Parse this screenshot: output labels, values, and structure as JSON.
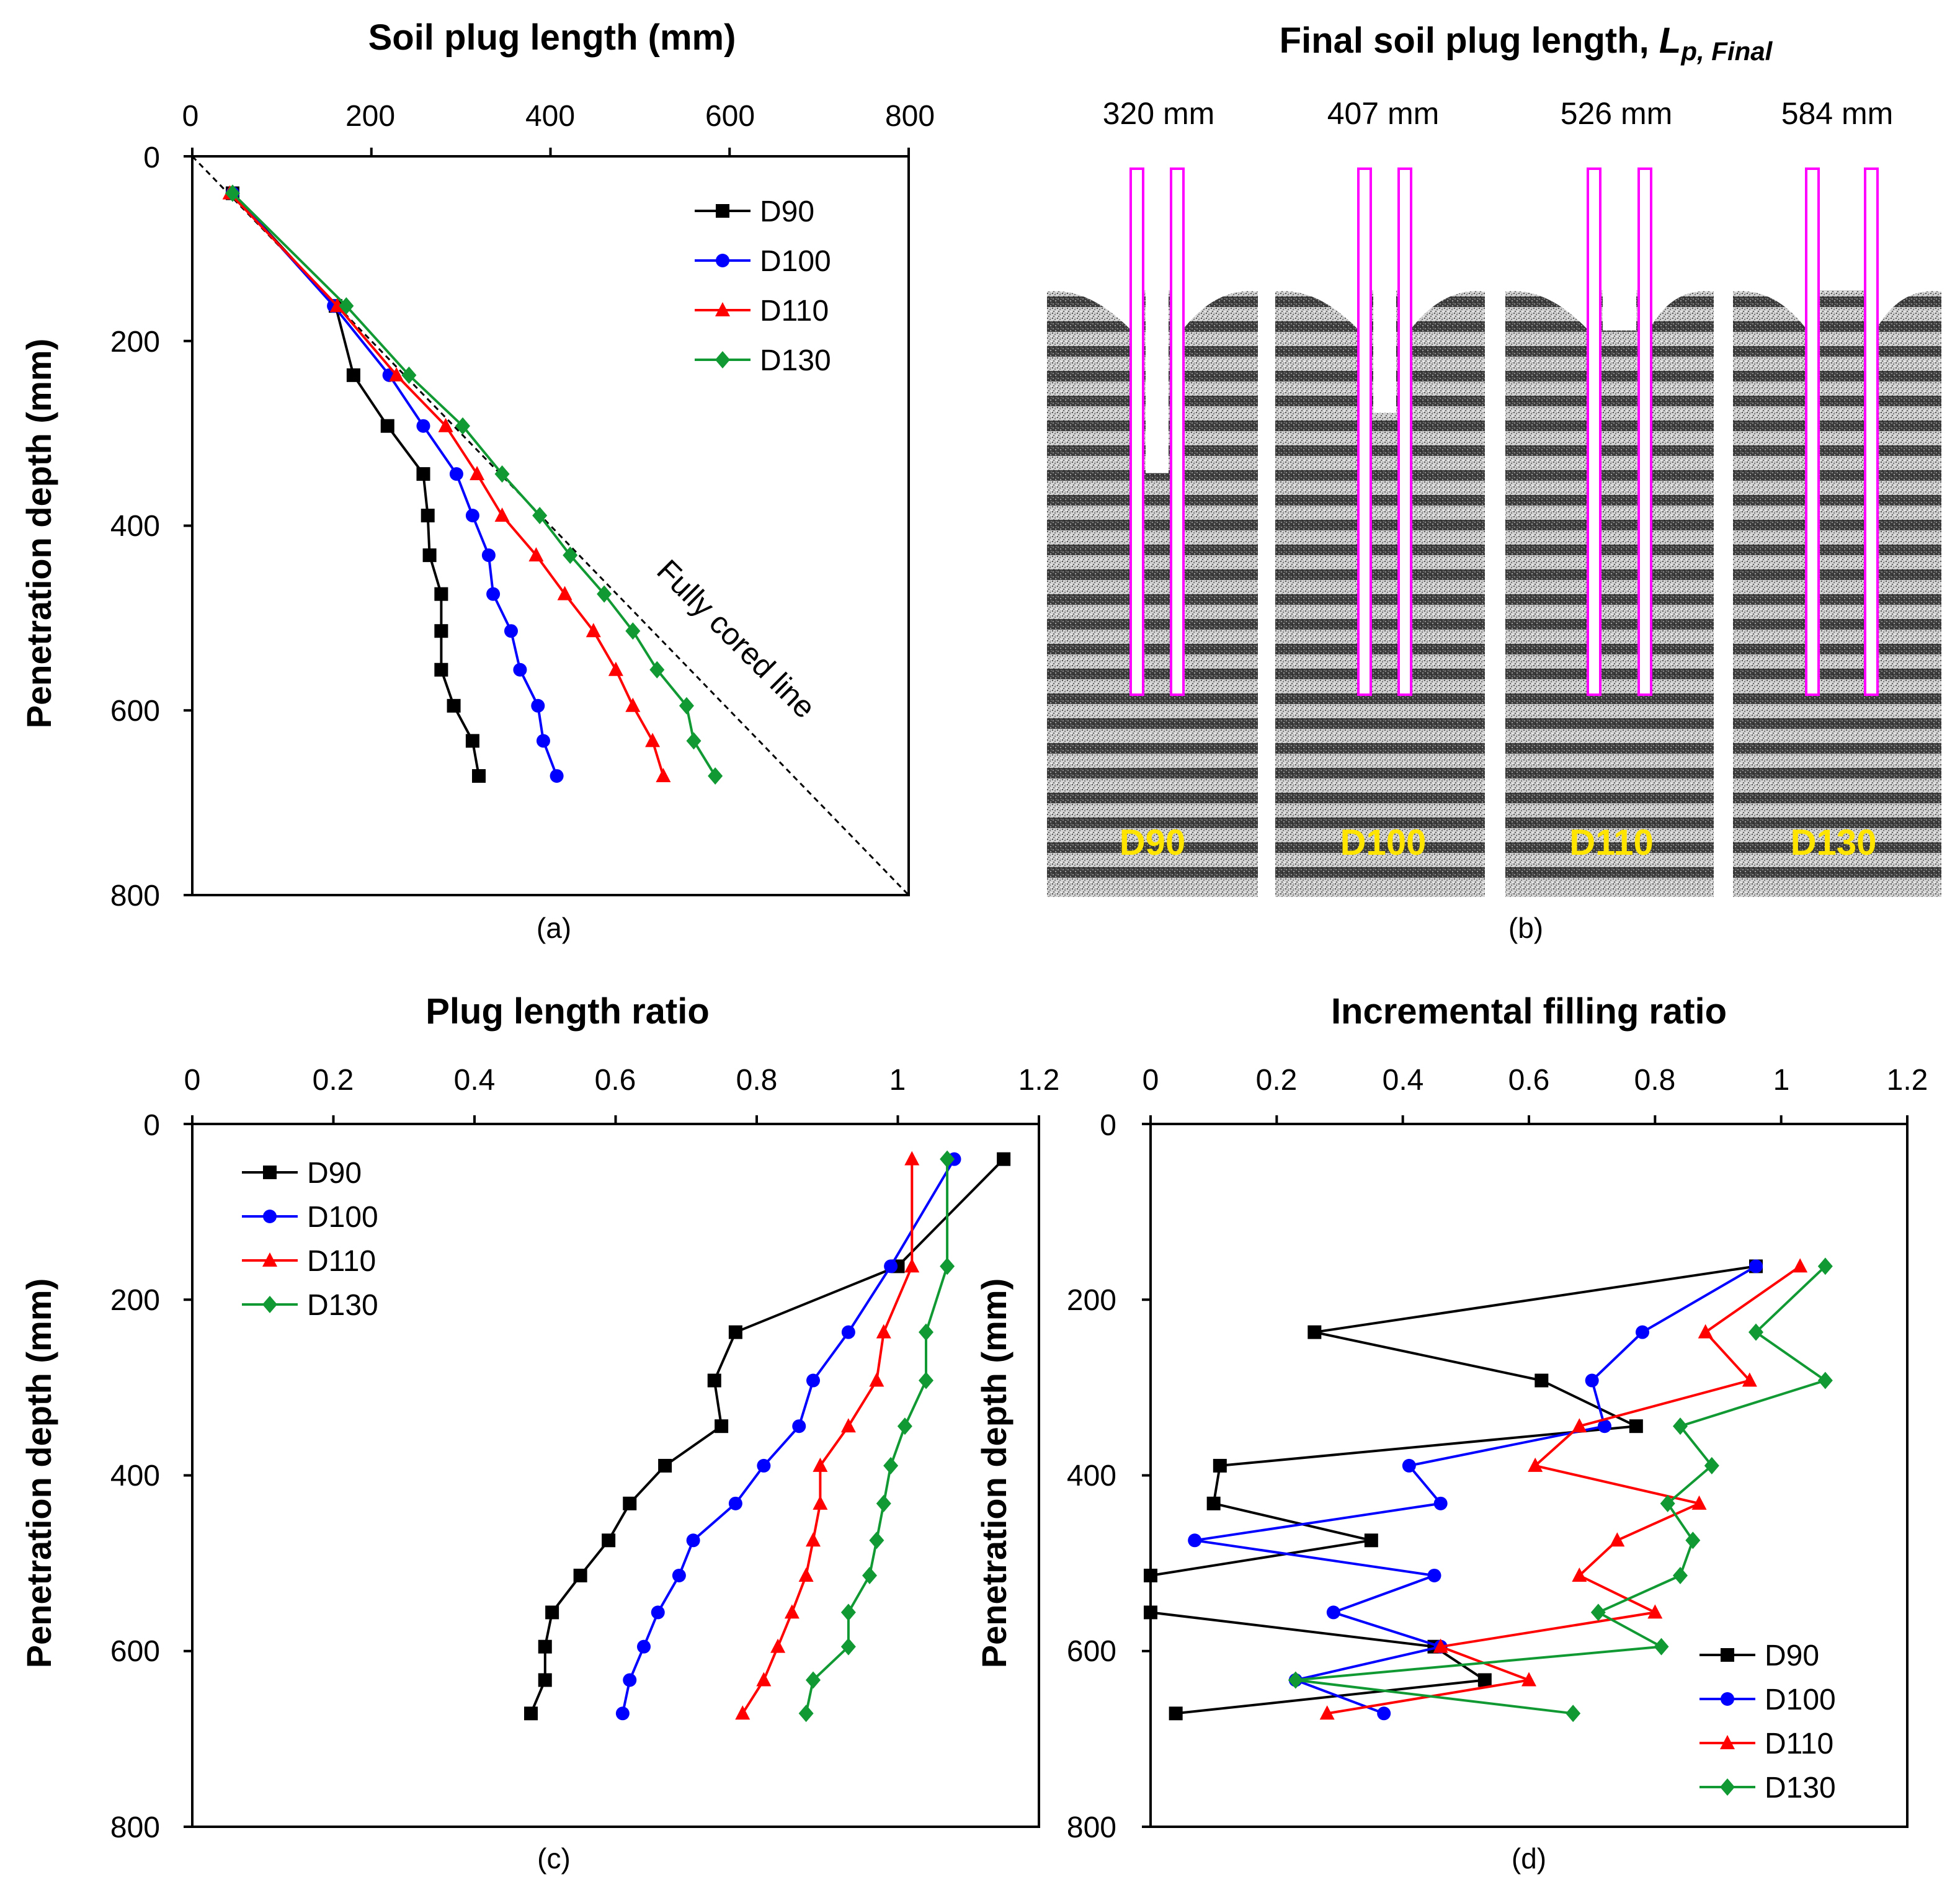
{
  "colors": {
    "D90": "#000000",
    "D100": "#0000ff",
    "D110": "#ff0000",
    "D130": "#119933",
    "pile": "#ff00ff",
    "label": "#ffe400"
  },
  "panel_b": {
    "title_main": "Final soil plug length, ",
    "title_sym": "L",
    "title_sub": "p, Final",
    "plug_lengths": [
      "320 mm",
      "407 mm",
      "526 mm",
      "584 mm"
    ],
    "case_labels": [
      "D90",
      "D100",
      "D110",
      "D130"
    ],
    "plug_depth_mm": [
      320,
      407,
      526,
      584
    ],
    "caption": "(b)"
  },
  "chart_data": [
    {
      "type": "line",
      "panel": "a",
      "caption": "(a)",
      "title": "Soil plug length (mm)",
      "xlabel": "Soil plug length (mm)",
      "ylabel": "Penetration depth (mm)",
      "xlim": [
        0,
        800
      ],
      "ylim": [
        0,
        800
      ],
      "xticks": [
        "0",
        "200",
        "400",
        "600",
        "800"
      ],
      "yticks": [
        "0",
        "200",
        "400",
        "600",
        "800"
      ],
      "legend_position": "top-right",
      "reference_line": {
        "label": "Fully cored line",
        "x": [
          0,
          800
        ],
        "y": [
          0,
          800
        ]
      },
      "series": [
        {
          "name": "D90",
          "marker": "square",
          "color": "#000000",
          "x": [
            45,
            160,
            180,
            218,
            258,
            263,
            265,
            278,
            278,
            278,
            292,
            313,
            320
          ],
          "y": [
            40,
            162,
            237,
            292,
            344,
            389,
            432,
            474,
            514,
            556,
            595,
            633,
            671
          ]
        },
        {
          "name": "D100",
          "marker": "circle",
          "color": "#0000ff",
          "x": [
            45,
            158,
            220,
            258,
            295,
            313,
            331,
            336,
            356,
            366,
            386,
            392,
            407
          ],
          "y": [
            40,
            162,
            237,
            292,
            344,
            389,
            432,
            474,
            514,
            556,
            595,
            633,
            671
          ]
        },
        {
          "name": "D110",
          "marker": "triangle",
          "color": "#ff0000",
          "x": [
            42,
            162,
            228,
            283,
            318,
            346,
            384,
            416,
            448,
            473,
            492,
            514,
            526
          ],
          "y": [
            40,
            162,
            237,
            292,
            344,
            389,
            432,
            474,
            514,
            556,
            595,
            633,
            671
          ]
        },
        {
          "name": "D130",
          "marker": "diamond",
          "color": "#119933",
          "x": [
            45,
            172,
            242,
            302,
            346,
            388,
            422,
            460,
            492,
            519,
            552,
            560,
            584
          ],
          "y": [
            40,
            162,
            237,
            292,
            344,
            389,
            432,
            474,
            514,
            556,
            595,
            633,
            671
          ]
        }
      ]
    },
    {
      "type": "line",
      "panel": "c",
      "caption": "(c)",
      "title": "Plug length ratio",
      "xlabel": "Plug length ratio",
      "ylabel": "Penetration depth (mm)",
      "xlim": [
        0,
        1.2
      ],
      "ylim": [
        0,
        800
      ],
      "xticks": [
        "0",
        "0.2",
        "0.4",
        "0.6",
        "0.8",
        "1",
        "1.2"
      ],
      "yticks": [
        "0",
        "200",
        "400",
        "600",
        "800"
      ],
      "legend_position": "top-left",
      "series": [
        {
          "name": "D90",
          "marker": "square",
          "color": "#000000",
          "x": [
            1.15,
            1.0,
            0.77,
            0.74,
            0.75,
            0.67,
            0.62,
            0.59,
            0.55,
            0.51,
            0.5,
            0.5,
            0.48
          ],
          "y": [
            40,
            162,
            237,
            292,
            344,
            389,
            432,
            474,
            514,
            556,
            595,
            633,
            671
          ]
        },
        {
          "name": "D100",
          "marker": "circle",
          "color": "#0000ff",
          "x": [
            1.08,
            0.99,
            0.93,
            0.88,
            0.86,
            0.81,
            0.77,
            0.71,
            0.69,
            0.66,
            0.64,
            0.62,
            0.61
          ],
          "y": [
            40,
            162,
            237,
            292,
            344,
            389,
            432,
            474,
            514,
            556,
            595,
            633,
            671
          ]
        },
        {
          "name": "D110",
          "marker": "triangle",
          "color": "#ff0000",
          "x": [
            1.02,
            1.02,
            0.98,
            0.97,
            0.93,
            0.89,
            0.89,
            0.88,
            0.87,
            0.85,
            0.83,
            0.81,
            0.78
          ],
          "y": [
            40,
            162,
            237,
            292,
            344,
            389,
            432,
            474,
            514,
            556,
            595,
            633,
            671
          ]
        },
        {
          "name": "D130",
          "marker": "diamond",
          "color": "#119933",
          "x": [
            1.07,
            1.07,
            1.04,
            1.04,
            1.01,
            0.99,
            0.98,
            0.97,
            0.96,
            0.93,
            0.93,
            0.88,
            0.87
          ],
          "y": [
            40,
            162,
            237,
            292,
            344,
            389,
            432,
            474,
            514,
            556,
            595,
            633,
            671
          ]
        }
      ]
    },
    {
      "type": "line",
      "panel": "d",
      "caption": "(d)",
      "title": "Incremental filling ratio",
      "xlabel": "Incremental filling ratio",
      "ylabel": "Penetration depth (mm)",
      "xlim": [
        0,
        1.2
      ],
      "ylim": [
        0,
        800
      ],
      "xticks": [
        "0",
        "0.2",
        "0.4",
        "0.6",
        "0.8",
        "1",
        "1.2"
      ],
      "yticks": [
        "0",
        "200",
        "400",
        "600",
        "800"
      ],
      "legend_position": "bottom-right",
      "series": [
        {
          "name": "D90",
          "marker": "square",
          "color": "#000000",
          "x": [
            0.96,
            0.26,
            0.62,
            0.77,
            0.11,
            0.1,
            0.35,
            0.0,
            0.0,
            0.45,
            0.53,
            0.04
          ],
          "y": [
            162,
            237,
            292,
            344,
            389,
            432,
            474,
            514,
            556,
            595,
            633,
            671
          ]
        },
        {
          "name": "D100",
          "marker": "circle",
          "color": "#0000ff",
          "x": [
            0.96,
            0.78,
            0.7,
            0.72,
            0.41,
            0.46,
            0.07,
            0.45,
            0.29,
            0.46,
            0.23,
            0.37
          ],
          "y": [
            162,
            237,
            292,
            344,
            389,
            432,
            474,
            514,
            556,
            595,
            633,
            671
          ]
        },
        {
          "name": "D110",
          "marker": "triangle",
          "color": "#ff0000",
          "x": [
            1.03,
            0.88,
            0.95,
            0.68,
            0.61,
            0.87,
            0.74,
            0.68,
            0.8,
            0.46,
            0.6,
            0.28
          ],
          "y": [
            162,
            237,
            292,
            344,
            389,
            432,
            474,
            514,
            556,
            595,
            633,
            671
          ]
        },
        {
          "name": "D130",
          "marker": "diamond",
          "color": "#119933",
          "x": [
            1.07,
            0.96,
            1.07,
            0.84,
            0.89,
            0.82,
            0.86,
            0.84,
            0.71,
            0.81,
            0.23,
            0.67
          ],
          "y": [
            162,
            237,
            292,
            344,
            389,
            432,
            474,
            514,
            556,
            595,
            633,
            671
          ]
        }
      ]
    }
  ]
}
